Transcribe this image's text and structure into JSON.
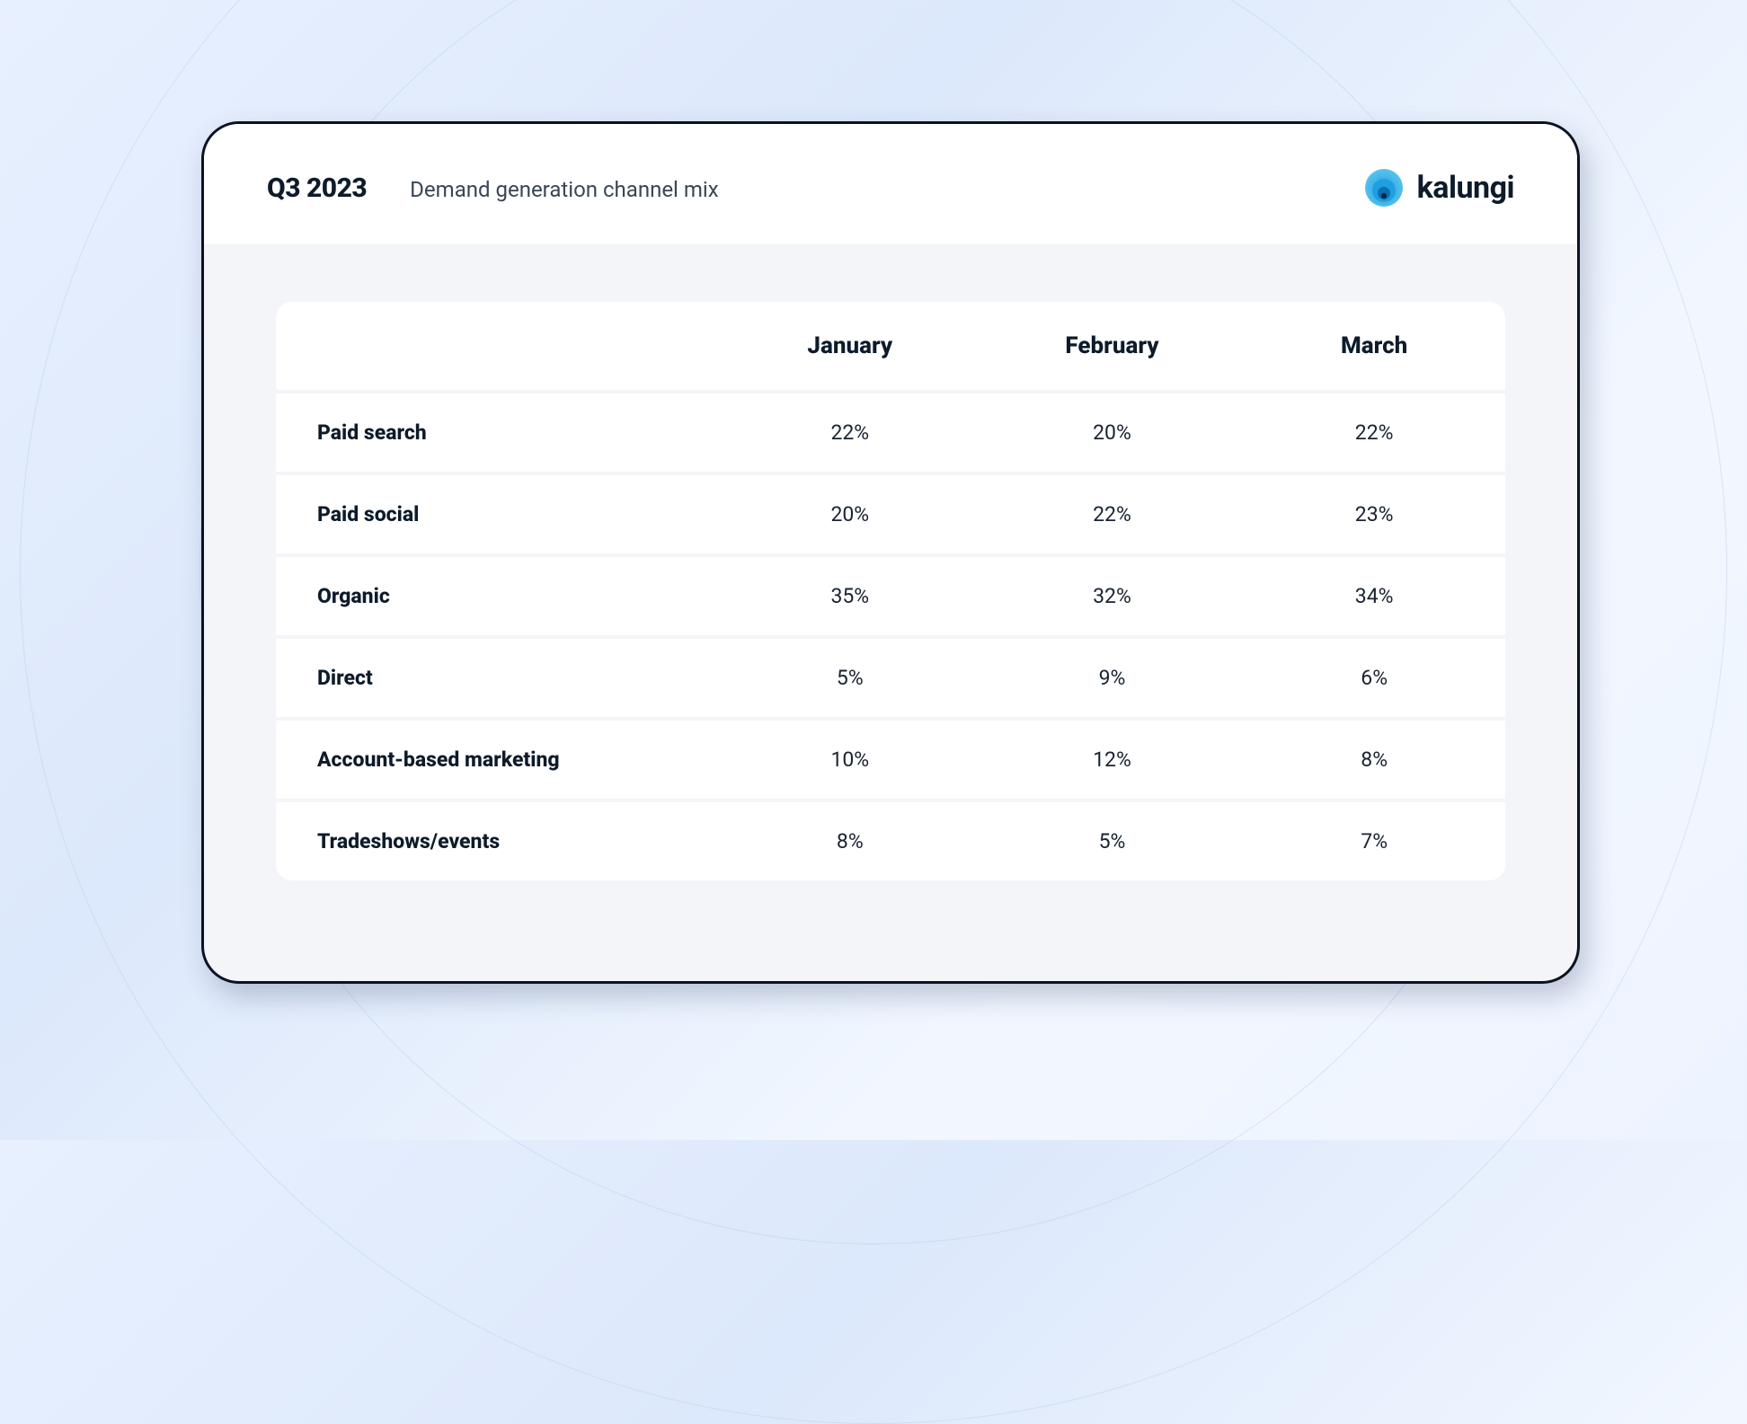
{
  "header": {
    "title": "Q3 2023",
    "subtitle": "Demand generation channel mix",
    "brand_name": "kalungi"
  },
  "brand_colors": {
    "ring_outer": "#5ec7ef",
    "ring_mid": "#1f9fe0",
    "ring_inner": "#0d6fb3",
    "dot": "#0b2a45"
  },
  "table": {
    "type": "table",
    "columns": [
      "",
      "January",
      "February",
      "March"
    ],
    "rows": [
      {
        "label": "Paid search",
        "values": [
          "22%",
          "20%",
          "22%"
        ]
      },
      {
        "label": "Paid social",
        "values": [
          "20%",
          "22%",
          "23%"
        ]
      },
      {
        "label": "Organic",
        "values": [
          "35%",
          "32%",
          "34%"
        ]
      },
      {
        "label": "Direct",
        "values": [
          "5%",
          "9%",
          "6%"
        ]
      },
      {
        "label": "Account-based marketing",
        "values": [
          "10%",
          "12%",
          "8%"
        ]
      },
      {
        "label": "Tradeshows/events",
        "values": [
          "8%",
          "5%",
          "7%"
        ]
      }
    ],
    "header_fontsize": 26,
    "cell_fontsize": 23,
    "row_bg": "#ffffff",
    "gap_bg": "#f3f5f8",
    "text_color": "#1a2332",
    "header_text_color": "#0d1b2a",
    "border_radius": 18,
    "col_widths_pct": [
      36,
      21.3,
      21.3,
      21.3
    ]
  },
  "card": {
    "bg": "#f3f5f8",
    "border_color": "#0b1220",
    "border_width": 3,
    "border_radius": 42,
    "shadow": "8px 14px 30px rgba(40,60,100,0.25)"
  },
  "page_bg_gradient": [
    "#e8f0ff",
    "#dce8fb",
    "#f2f7ff",
    "#eef4ff"
  ]
}
